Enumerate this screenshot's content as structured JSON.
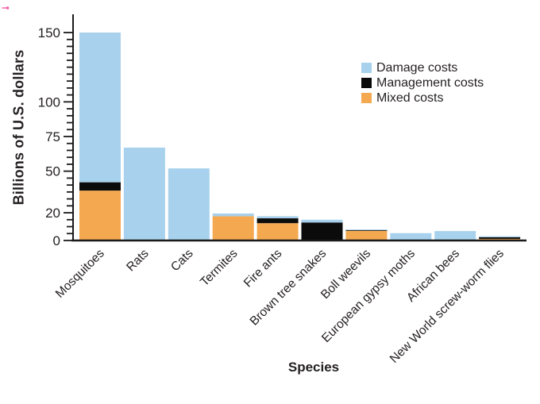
{
  "figure": {
    "background": "#ffffff",
    "text_color": "#231f20",
    "axis_color": "#1a1a1a",
    "artifact": {
      "name": "pink-cursor-mark",
      "color": "#f25fa8"
    }
  },
  "chart_data": {
    "type": "bar",
    "stacked": true,
    "title": "",
    "xlabel": "Species",
    "ylabel": "Billions of U.S. dollars",
    "ylim": [
      0,
      163
    ],
    "grid": false,
    "legend_position": "top-right-inside",
    "y_axis": {
      "labeled_ticks": [
        0,
        20,
        50,
        75,
        100,
        150
      ],
      "minor_tick_step": 5,
      "minor_tick_max": 150
    },
    "categories": [
      "Mosquitoes",
      "Rats",
      "Cats",
      "Termites",
      "Fire ants",
      "Brown tree snakes",
      "Boll weevils",
      "European gypsy moths",
      "African bees",
      "New World screw-worm flies"
    ],
    "series": [
      {
        "name": "Mixed costs",
        "color": "#f4a951",
        "stack_position": "bottom",
        "values": [
          36,
          0,
          0,
          17.5,
          12.5,
          0,
          7,
          0,
          0,
          1.2
        ]
      },
      {
        "name": "Management costs",
        "color": "#0b0b0b",
        "stack_position": "middle",
        "values": [
          6,
          0,
          0,
          0,
          3.5,
          13,
          0.5,
          0,
          0,
          1.2
        ]
      },
      {
        "name": "Damage costs",
        "color": "#a7d1ec",
        "stack_position": "top",
        "values": [
          108,
          67,
          52,
          2,
          1.5,
          2,
          0.5,
          5.3,
          6.8,
          0.6
        ]
      }
    ],
    "legend": [
      {
        "label": "Damage costs",
        "color": "#a7d1ec"
      },
      {
        "label": "Management costs",
        "color": "#0b0b0b"
      },
      {
        "label": "Mixed costs",
        "color": "#f4a951"
      }
    ]
  }
}
